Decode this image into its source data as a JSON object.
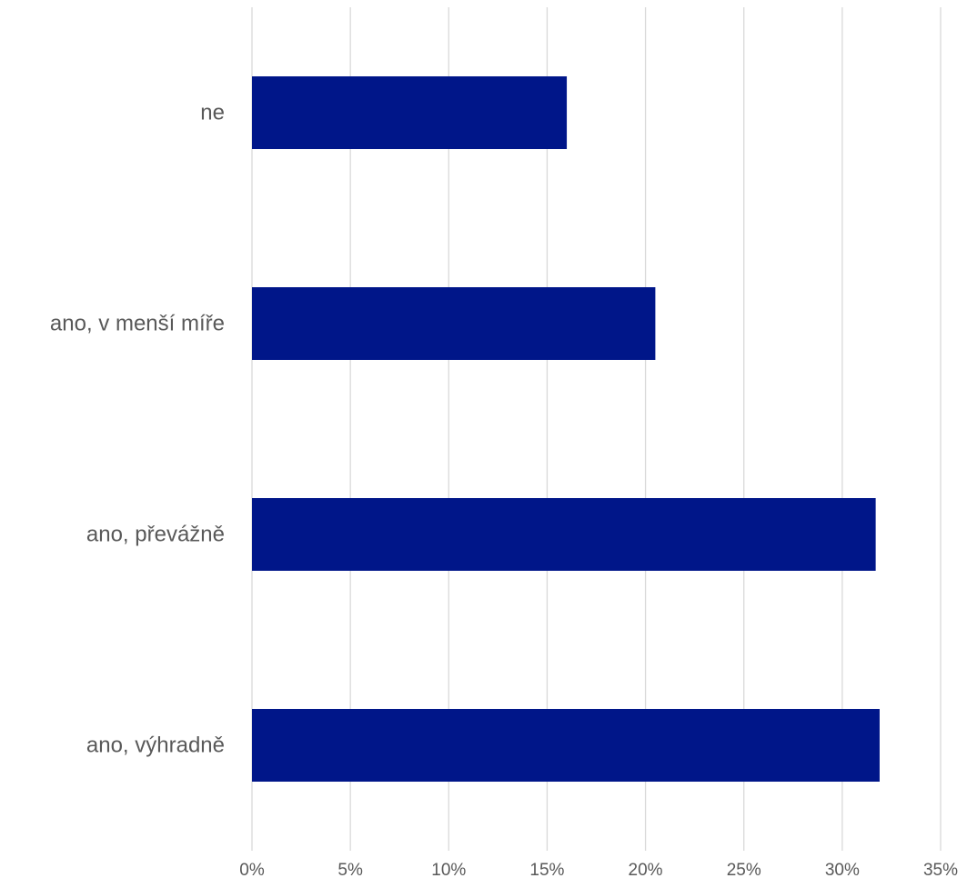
{
  "chart_data": {
    "type": "bar",
    "orientation": "horizontal",
    "title": "",
    "xlabel": "",
    "ylabel": "",
    "categories": [
      "ne",
      "ano, v menší míře",
      "ano, převážně",
      "ano, výhradně"
    ],
    "values": [
      16,
      20.5,
      31.7,
      31.9
    ],
    "xlim": [
      0,
      35
    ],
    "x_ticks": [
      0,
      5,
      10,
      15,
      20,
      25,
      30,
      35
    ],
    "tick_format": "{v}%",
    "grid": "vertical",
    "legend": "none",
    "bar_color": "#001689",
    "grid_color": "#d9d9d9",
    "text_color": "#595959"
  }
}
